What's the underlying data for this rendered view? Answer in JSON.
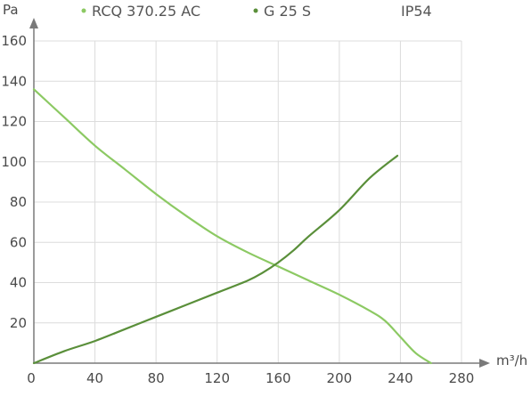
{
  "chart_data": {
    "type": "line",
    "title": "",
    "xlabel": "",
    "ylabel": "",
    "x_unit": "m³/h",
    "y_unit": "Pa",
    "protection_rating": "IP54",
    "xlim": [
      0,
      280
    ],
    "ylim": [
      0,
      160
    ],
    "xticks": [
      0,
      40,
      80,
      120,
      160,
      200,
      240,
      280
    ],
    "yticks": [
      20,
      40,
      60,
      80,
      100,
      120,
      140,
      160
    ],
    "grid": true,
    "legend_position": "top",
    "series": [
      {
        "name": "RCQ 370.25 AC",
        "color": "#8cc963",
        "x": [
          0,
          20,
          40,
          60,
          80,
          100,
          120,
          140,
          160,
          180,
          200,
          220,
          230,
          240,
          250,
          260
        ],
        "y": [
          136,
          122,
          108,
          96,
          84,
          73,
          63,
          55,
          48,
          41,
          34,
          26,
          21,
          13,
          5,
          0
        ]
      },
      {
        "name": "G 25 S",
        "color": "#5a8f3a",
        "x": [
          0,
          20,
          40,
          60,
          80,
          100,
          120,
          140,
          150,
          160,
          170,
          180,
          200,
          220,
          238
        ],
        "y": [
          0,
          6,
          11,
          17,
          23,
          29,
          35,
          41,
          45,
          50,
          56,
          63,
          76,
          92,
          103
        ]
      }
    ]
  }
}
